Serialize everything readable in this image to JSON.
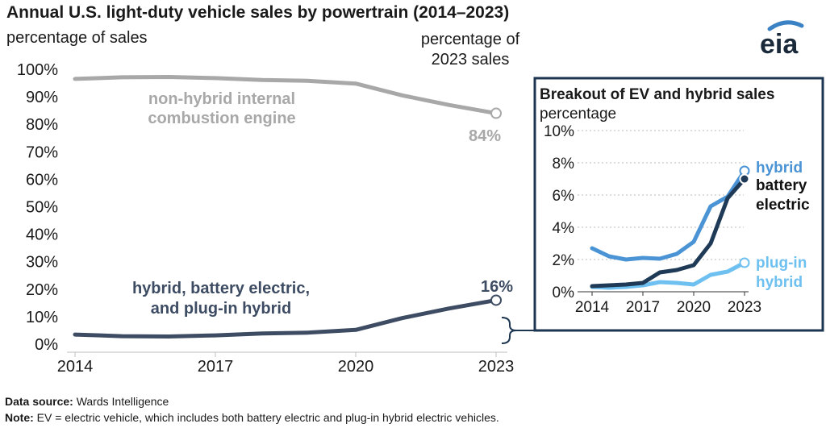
{
  "title": "Annual U.S. light-duty vehicle sales by powertrain (2014–2023)",
  "subtitle": "percentage of sales",
  "logo_text": "eia",
  "footer": {
    "source_label": "Data source:",
    "source_text": " Wards Intelligence",
    "note_label": "Note:",
    "note_text": " EV = electric vehicle, which includes both battery electric and plug-in hybrid electric vehicles."
  },
  "colors": {
    "ice": "#a8a8a8",
    "combined": "#3d4c63",
    "hybrid": "#4a93d4",
    "battery_electric": "#1f3a56",
    "plugin_hybrid": "#6ec0f0",
    "inset_border": "#1c3550"
  },
  "chart_data": [
    {
      "type": "line",
      "title": "Annual U.S. light-duty vehicle sales by powertrain (2014–2023)",
      "ylabel": "percentage of sales",
      "right_label": [
        "percentage of",
        "2023 sales"
      ],
      "x": [
        2014,
        2015,
        2016,
        2017,
        2018,
        2019,
        2020,
        2021,
        2022,
        2023
      ],
      "xticks": [
        "2014",
        "2017",
        "2020",
        "2023"
      ],
      "ylim": [
        0,
        100
      ],
      "yticks": [
        "0%",
        "10%",
        "20%",
        "30%",
        "40%",
        "50%",
        "60%",
        "70%",
        "80%",
        "90%",
        "100%"
      ],
      "series": [
        {
          "name": "non-hybrid internal combustion engine",
          "label_lines": [
            "non-hybrid internal",
            "combustion engine"
          ],
          "values": [
            96.5,
            97.1,
            97.2,
            96.8,
            96.1,
            95.8,
            94.8,
            90.5,
            87.0,
            84.0
          ],
          "end_label": "84%"
        },
        {
          "name": "hybrid, battery electric, and plug-in hybrid",
          "label_lines": [
            "hybrid, battery electric,",
            "and plug-in hybrid"
          ],
          "values": [
            3.5,
            2.9,
            2.8,
            3.2,
            3.9,
            4.2,
            5.2,
            9.5,
            13.0,
            16.0
          ],
          "end_label": "16%"
        }
      ]
    },
    {
      "type": "line",
      "title": "Breakout of EV and hybrid sales",
      "ylabel": "percentage",
      "x": [
        2014,
        2015,
        2016,
        2017,
        2018,
        2019,
        2020,
        2021,
        2022,
        2023
      ],
      "xticks": [
        "2014",
        "2017",
        "2020",
        "2023"
      ],
      "ylim": [
        0,
        10
      ],
      "yticks": [
        "0%",
        "2%",
        "4%",
        "6%",
        "8%",
        "10%"
      ],
      "series": [
        {
          "name": "hybrid",
          "label_lines": [
            "hybrid"
          ],
          "values": [
            2.7,
            2.2,
            2.0,
            2.1,
            2.05,
            2.35,
            3.1,
            5.3,
            5.9,
            7.5
          ]
        },
        {
          "name": "battery electric",
          "label_lines": [
            "battery",
            "electric"
          ],
          "values": [
            0.35,
            0.4,
            0.45,
            0.55,
            1.2,
            1.35,
            1.65,
            3.0,
            5.8,
            7.0
          ]
        },
        {
          "name": "plug-in hybrid",
          "label_lines": [
            "plug-in",
            "hybrid"
          ],
          "values": [
            0.3,
            0.25,
            0.3,
            0.4,
            0.6,
            0.55,
            0.45,
            1.05,
            1.25,
            1.8
          ]
        }
      ]
    }
  ]
}
